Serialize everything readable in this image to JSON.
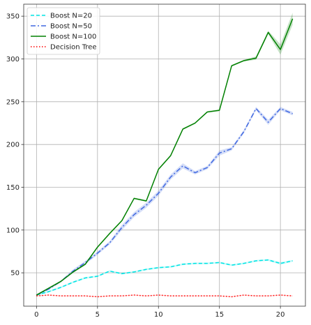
{
  "chart_data": {
    "type": "line",
    "title": "",
    "xlabel": "",
    "ylabel": "",
    "xlim": [
      -1.05,
      22.05
    ],
    "ylim": [
      11,
      364
    ],
    "xticks": [
      0,
      5,
      10,
      15,
      20
    ],
    "yticks": [
      50,
      100,
      150,
      200,
      250,
      300,
      350
    ],
    "grid": true,
    "legend_position": "top-left",
    "x": [
      0,
      1,
      2,
      3,
      4,
      5,
      6,
      7,
      8,
      9,
      10,
      11,
      12,
      13,
      14,
      15,
      16,
      17,
      18,
      19,
      20,
      21
    ],
    "series": [
      {
        "name": "Boost N=20",
        "color": "#00e5e5",
        "linestyle": "dashed",
        "values": [
          24,
          28,
          33,
          39,
          44,
          46,
          52,
          49,
          51,
          54,
          56,
          57,
          60,
          61,
          61,
          62,
          59,
          61,
          64,
          65,
          61,
          64
        ],
        "band": [
          1,
          1,
          1,
          1,
          1,
          1,
          1,
          1,
          1,
          1,
          1,
          1,
          1,
          1,
          1,
          1,
          1,
          1,
          1,
          1,
          1.5,
          1
        ]
      },
      {
        "name": "Boost N=50",
        "color": "#4169e1",
        "linestyle": "dashdot",
        "values": [
          24,
          31,
          40,
          52,
          62,
          73,
          85,
          103,
          118,
          129,
          143,
          162,
          175,
          167,
          173,
          190,
          195,
          215,
          242,
          226,
          242,
          236
        ],
        "band": [
          1,
          1,
          1,
          2,
          2,
          2,
          2,
          3,
          3,
          3,
          3,
          3,
          3,
          2,
          2,
          3,
          2,
          2,
          2,
          3,
          2,
          2
        ]
      },
      {
        "name": "Boost N=100",
        "color": "#008000",
        "linestyle": "solid",
        "values": [
          24,
          32,
          40,
          51,
          60,
          80,
          96,
          111,
          137,
          134,
          171,
          187,
          218,
          225,
          238,
          240,
          292,
          298,
          301,
          331,
          311,
          347
        ],
        "band": [
          1,
          1,
          1,
          1,
          1,
          1,
          1,
          1,
          1,
          1,
          1,
          1,
          1,
          1,
          1,
          1,
          1,
          1,
          2,
          2,
          6,
          7
        ]
      },
      {
        "name": "Decision Tree",
        "color": "#ff0000",
        "linestyle": "dotted",
        "values": [
          23,
          24,
          23,
          23,
          23,
          22,
          23,
          23,
          24,
          23,
          24,
          23,
          23,
          23,
          23,
          23,
          22,
          24,
          23,
          23,
          24,
          23
        ],
        "band": [
          0.5,
          0.5,
          0.5,
          0.5,
          0.5,
          0.5,
          0.5,
          0.5,
          0.5,
          0.5,
          0.5,
          0.5,
          0.5,
          0.5,
          0.5,
          0.5,
          0.5,
          0.5,
          0.5,
          0.5,
          0.5,
          0.5
        ]
      }
    ]
  }
}
